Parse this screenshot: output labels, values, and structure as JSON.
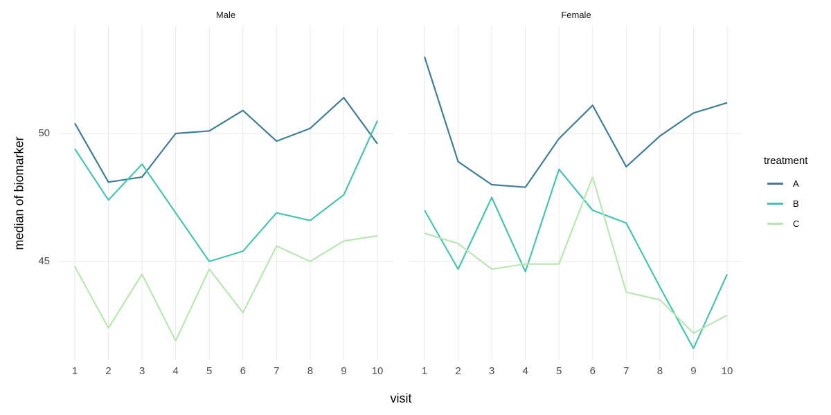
{
  "figure": {
    "facets": [
      "Male",
      "Female"
    ],
    "y_axis": {
      "title": "median of biomarker",
      "tick_labels": [
        "50",
        "45"
      ],
      "tick_values": [
        50,
        45
      ]
    },
    "x_axis": {
      "title": "visit",
      "tick_labels": [
        "1",
        "2",
        "3",
        "4",
        "5",
        "6",
        "7",
        "8",
        "9",
        "10"
      ]
    },
    "legend": {
      "title": "treatment",
      "entries": [
        {
          "label": "A",
          "color": "#3d7e96"
        },
        {
          "label": "B",
          "color": "#45c4b2"
        },
        {
          "label": "C",
          "color": "#b8e8b0"
        }
      ]
    },
    "colors": {
      "gridline": "#e9e9e9",
      "tick_text": "#4d4d4d",
      "background": "#ffffff"
    }
  },
  "chart_data": [
    {
      "type": "line",
      "facet": "Male",
      "x": [
        1,
        2,
        3,
        4,
        5,
        6,
        7,
        8,
        9,
        10
      ],
      "series": [
        {
          "name": "A",
          "color": "#3d7e96",
          "values": [
            50.4,
            48.1,
            48.3,
            50.0,
            50.1,
            50.9,
            49.7,
            50.2,
            51.4,
            49.6
          ]
        },
        {
          "name": "B",
          "color": "#45c4b2",
          "values": [
            49.4,
            47.4,
            48.8,
            46.9,
            45.0,
            45.4,
            46.9,
            46.6,
            47.6,
            50.5
          ]
        },
        {
          "name": "C",
          "color": "#b8e8b0",
          "values": [
            44.8,
            42.4,
            44.5,
            41.9,
            44.7,
            43.0,
            45.6,
            45.0,
            45.8,
            46.0
          ]
        }
      ],
      "xlabel": "visit",
      "ylabel": "median of biomarker",
      "ylim": [
        41.1,
        54.2
      ],
      "yticks": [
        45,
        50
      ],
      "grid": true,
      "legend_position": "right"
    },
    {
      "type": "line",
      "facet": "Female",
      "x": [
        1,
        2,
        3,
        4,
        5,
        6,
        7,
        8,
        9,
        10
      ],
      "series": [
        {
          "name": "A",
          "color": "#3d7e96",
          "values": [
            53.0,
            48.9,
            48.0,
            47.9,
            49.8,
            51.1,
            48.7,
            49.9,
            50.8,
            51.2
          ]
        },
        {
          "name": "B",
          "color": "#45c4b2",
          "values": [
            47.0,
            44.7,
            47.5,
            44.6,
            48.6,
            47.0,
            46.5,
            44.0,
            41.6,
            44.5
          ]
        },
        {
          "name": "C",
          "color": "#b8e8b0",
          "values": [
            46.1,
            45.7,
            44.7,
            44.9,
            44.9,
            48.3,
            43.8,
            43.5,
            42.2,
            42.9
          ]
        }
      ],
      "xlabel": "visit",
      "ylabel": "median of biomarker",
      "ylim": [
        41.1,
        54.2
      ],
      "yticks": [
        45,
        50
      ],
      "grid": true,
      "legend_position": "right"
    }
  ]
}
